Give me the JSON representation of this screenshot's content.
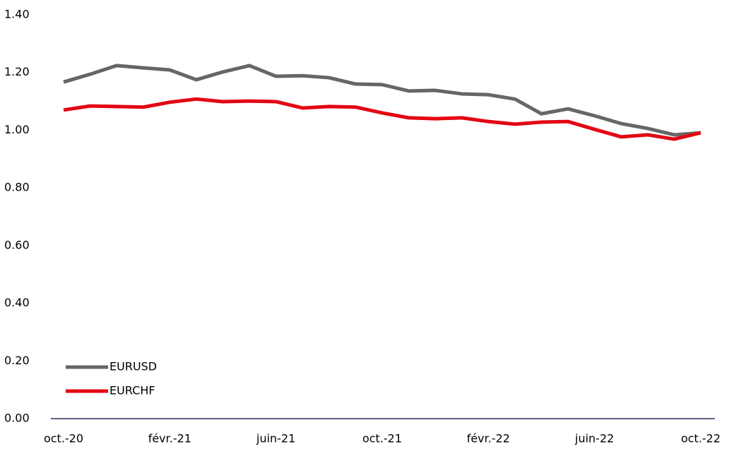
{
  "chart_data": {
    "type": "line",
    "categories": [
      "oct.-20",
      null,
      null,
      null,
      "févr.-21",
      null,
      null,
      null,
      "juin-21",
      null,
      null,
      null,
      "oct.-21",
      null,
      null,
      null,
      "févr.-22",
      null,
      null,
      null,
      "juin-22",
      null,
      null,
      null,
      "oct.-22"
    ],
    "series": [
      {
        "name": "EURUSD",
        "color": "#666666",
        "values": [
          1.167,
          1.194,
          1.224,
          1.216,
          1.209,
          1.175,
          1.202,
          1.224,
          1.187,
          1.189,
          1.182,
          1.16,
          1.158,
          1.136,
          1.138,
          1.126,
          1.123,
          1.108,
          1.057,
          1.074,
          1.05,
          1.023,
          1.006,
          0.984,
          0.991
        ]
      },
      {
        "name": "EURCHF",
        "color": "#e30613",
        "values": [
          1.07,
          1.084,
          1.082,
          1.08,
          1.097,
          1.108,
          1.099,
          1.101,
          1.099,
          1.077,
          1.082,
          1.08,
          1.06,
          1.043,
          1.04,
          1.043,
          1.03,
          1.021,
          1.028,
          1.03,
          1.003,
          0.977,
          0.984,
          0.969,
          0.991
        ]
      }
    ],
    "ylim": [
      0,
      1.4
    ],
    "yticks": [
      {
        "value": 0,
        "label": "0.00"
      },
      {
        "value": 0.2,
        "label": "0.20"
      },
      {
        "value": 0.4,
        "label": "0.40"
      },
      {
        "value": 0.6,
        "label": "0.60"
      },
      {
        "value": 0.8,
        "label": "0.80"
      },
      {
        "value": 1.0,
        "label": "1.00"
      },
      {
        "value": 1.2,
        "label": "1.20"
      },
      {
        "value": 1.4,
        "label": "1.40"
      }
    ],
    "grid": false,
    "legend": "lower left"
  }
}
